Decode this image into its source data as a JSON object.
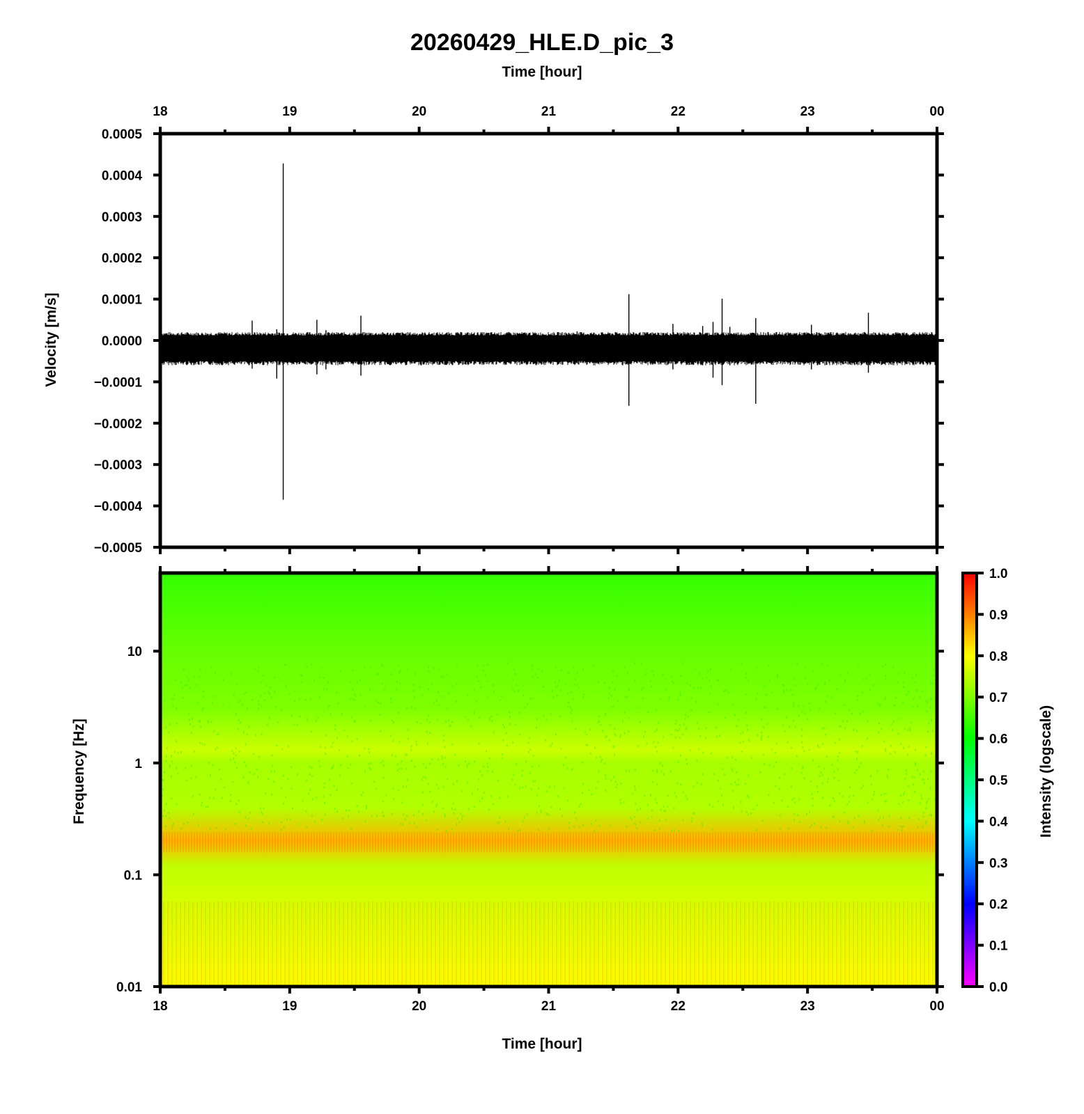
{
  "chart_data": [
    {
      "type": "line",
      "title": "20260429_HLE.D_pic_3",
      "xlabel": "Time [hour]",
      "ylabel": "Velocity [m/s]",
      "x_ticks": [
        "18",
        "19",
        "20",
        "21",
        "22",
        "23",
        "00"
      ],
      "x_range_hours": [
        18,
        24
      ],
      "ylim": [
        -0.0005,
        0.0005
      ],
      "y_ticks": [
        "0.0005",
        "0.0004",
        "0.0003",
        "0.0002",
        "0.0001",
        "0.0000",
        "−0.0001",
        "−0.0002",
        "−0.0003",
        "−0.0004",
        "−0.0005"
      ],
      "y_tick_values": [
        0.0005,
        0.0004,
        0.0003,
        0.0002,
        0.0001,
        0.0,
        -0.0001,
        -0.0002,
        -0.0003,
        -0.0004,
        -0.0005
      ],
      "noise_band": {
        "low": -5e-05,
        "high": 1.2e-05
      },
      "spikes": [
        {
          "t": 18.18,
          "max": 1.5e-05,
          "min": -4.5e-05
        },
        {
          "t": 18.71,
          "max": 4.8e-05,
          "min": -6.8e-05
        },
        {
          "t": 18.9,
          "max": 2.7e-05,
          "min": -9.2e-05
        },
        {
          "t": 18.95,
          "max": 0.000428,
          "min": -0.000385
        },
        {
          "t": 19.21,
          "max": 5e-05,
          "min": -8.2e-05
        },
        {
          "t": 19.28,
          "max": 2.5e-05,
          "min": -7e-05
        },
        {
          "t": 19.55,
          "max": 6e-05,
          "min": -8.5e-05
        },
        {
          "t": 21.22,
          "max": 2.2e-05,
          "min": -5.5e-05
        },
        {
          "t": 21.62,
          "max": 0.000112,
          "min": -0.000158
        },
        {
          "t": 21.96,
          "max": 4e-05,
          "min": -7e-05
        },
        {
          "t": 22.19,
          "max": 3.5e-05,
          "min": -6e-05
        },
        {
          "t": 22.27,
          "max": 4.5e-05,
          "min": -9e-05
        },
        {
          "t": 22.34,
          "max": 0.000101,
          "min": -0.000108
        },
        {
          "t": 22.4,
          "max": 3.3e-05,
          "min": -6e-05
        },
        {
          "t": 22.6,
          "max": 5.4e-05,
          "min": -0.000153
        },
        {
          "t": 23.03,
          "max": 3.8e-05,
          "min": -7e-05
        },
        {
          "t": 23.47,
          "max": 6.7e-05,
          "min": -7.8e-05
        }
      ]
    },
    {
      "type": "heatmap",
      "xlabel": "Time [hour]",
      "ylabel": "Frequency [Hz]",
      "x_ticks": [
        "18",
        "19",
        "20",
        "21",
        "22",
        "23",
        "00"
      ],
      "y_scale": "log",
      "ylim": [
        0.01,
        50
      ],
      "y_ticks": [
        "10",
        "1",
        "0.1",
        "0.01"
      ],
      "y_tick_values": [
        10,
        1,
        0.1,
        0.01
      ],
      "colorbar": {
        "label": "Intensity (logscale)",
        "ticks": [
          "1.0",
          "0.9",
          "0.8",
          "0.7",
          "0.6",
          "0.5",
          "0.4",
          "0.3",
          "0.2",
          "0.1",
          "0.0"
        ],
        "tick_values": [
          1.0,
          0.9,
          0.8,
          0.7,
          0.6,
          0.5,
          0.4,
          0.3,
          0.2,
          0.1,
          0.0
        ],
        "colors": [
          "#ff00ff",
          "#0000ff",
          "#00ffff",
          "#00ff00",
          "#ffff00",
          "#ff0000"
        ]
      },
      "intensity_profile": [
        {
          "freq": 50,
          "intensity": 0.64
        },
        {
          "freq": 10,
          "intensity": 0.68
        },
        {
          "freq": 3,
          "intensity": 0.7
        },
        {
          "freq": 1.3,
          "intensity": 0.76
        },
        {
          "freq": 1.0,
          "intensity": 0.73
        },
        {
          "freq": 0.4,
          "intensity": 0.74
        },
        {
          "freq": 0.2,
          "intensity": 0.86
        },
        {
          "freq": 0.12,
          "intensity": 0.75
        },
        {
          "freq": 0.05,
          "intensity": 0.77
        },
        {
          "freq": 0.01,
          "intensity": 0.8
        }
      ]
    }
  ]
}
